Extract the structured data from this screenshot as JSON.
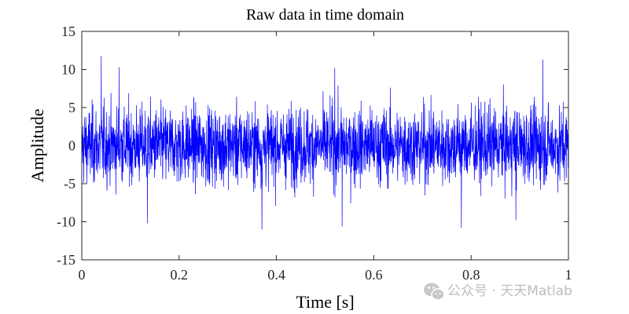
{
  "chart_data": {
    "type": "line",
    "title": "Raw data in time domain",
    "xlabel": "Time [s]",
    "ylabel": "Amplitude",
    "xlim": [
      0,
      1
    ],
    "ylim": [
      -15,
      15
    ],
    "xticks": [
      0,
      0.2,
      0.4,
      0.6,
      0.8,
      1
    ],
    "xtick_labels": [
      "0",
      "0.2",
      "0.4",
      "0.6",
      "0.8",
      "1"
    ],
    "yticks": [
      15,
      10,
      5,
      0,
      -5,
      -10,
      -15
    ],
    "ytick_labels": [
      "15",
      "10",
      "5",
      "0",
      "-5",
      "-10",
      "-15"
    ],
    "grid": false,
    "legend": "none",
    "series": [
      {
        "color": "#0000ff",
        "distribution": "random noise, zero mean",
        "std": 2.5,
        "max": 11.8,
        "min": -11.0,
        "peaks": [
          {
            "x": 0.04,
            "y": 11.8
          },
          {
            "x": 0.947,
            "y": 11.3
          },
          {
            "x": 0.077,
            "y": 10.3
          },
          {
            "x": 0.52,
            "y": 10.2
          },
          {
            "x": 0.37,
            "y": -11.0
          },
          {
            "x": 0.78,
            "y": -10.8
          },
          {
            "x": 0.535,
            "y": -10.6
          },
          {
            "x": 0.135,
            "y": -10.2
          },
          {
            "x": 0.892,
            "y": -9.8
          }
        ]
      }
    ]
  },
  "watermark": {
    "icon": "wechat-icon",
    "text": "公众号 · 天天Matlab",
    "color": "#bdbdbd"
  }
}
